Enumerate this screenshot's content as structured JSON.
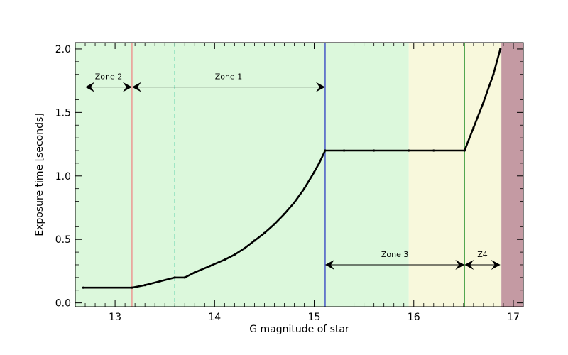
{
  "chart_data": {
    "type": "line",
    "title": "",
    "xlabel": "G magnitude of star",
    "ylabel": "Exposure time [seconds]",
    "xlim": [
      12.6,
      17.1
    ],
    "ylim": [
      -0.03,
      2.05
    ],
    "x_ticks": [
      13,
      14,
      15,
      16,
      17
    ],
    "y_ticks": [
      0.0,
      0.5,
      1.0,
      1.5,
      2.0
    ],
    "x_tick_labels": [
      "13",
      "14",
      "15",
      "16",
      "17"
    ],
    "y_tick_labels": [
      "0.0",
      "0.5",
      "1.0",
      "1.5",
      "2.0"
    ],
    "grid": false,
    "background_bands": [
      {
        "x0": 12.6,
        "x1": 15.95,
        "color": "#dcf8dc"
      },
      {
        "x0": 15.95,
        "x1": 16.88,
        "color": "#f8f8dc"
      },
      {
        "x0": 16.88,
        "x1": 17.1,
        "color": "#c49aa3"
      }
    ],
    "vertical_lines": [
      {
        "x": 13.17,
        "color": "#f08080",
        "style": "solid"
      },
      {
        "x": 13.6,
        "color": "#40c8a0",
        "style": "dashed"
      },
      {
        "x": 15.11,
        "color": "#2030c0",
        "style": "solid"
      },
      {
        "x": 16.51,
        "color": "#3a9a3a",
        "style": "solid"
      }
    ],
    "zones": [
      {
        "label": "Zone 2",
        "x0": 12.7,
        "x1": 13.17,
        "y": 1.7
      },
      {
        "label": "Zone 1",
        "x0": 13.17,
        "x1": 15.11,
        "y": 1.7
      },
      {
        "label": "Zone 3",
        "x0": 15.11,
        "x1": 16.51,
        "y": 0.3
      },
      {
        "label": "Z4",
        "x0": 16.51,
        "x1": 16.87,
        "y": 0.3
      }
    ],
    "series": [
      {
        "color": "#000000",
        "x": [
          12.68,
          13.17,
          13.3,
          13.45,
          13.6,
          13.7,
          13.8,
          13.95,
          14.1,
          14.2,
          14.3,
          14.4,
          14.5,
          14.6,
          14.7,
          14.8,
          14.9,
          15.0,
          15.05,
          15.11,
          15.3,
          15.6,
          15.95,
          16.2,
          16.51,
          16.6,
          16.7,
          16.8,
          16.87
        ],
        "y": [
          0.12,
          0.12,
          0.14,
          0.17,
          0.2,
          0.2,
          0.24,
          0.29,
          0.34,
          0.38,
          0.43,
          0.49,
          0.55,
          0.62,
          0.7,
          0.79,
          0.9,
          1.03,
          1.1,
          1.2,
          1.2,
          1.2,
          1.2,
          1.2,
          1.2,
          1.38,
          1.58,
          1.8,
          2.0
        ]
      }
    ]
  }
}
